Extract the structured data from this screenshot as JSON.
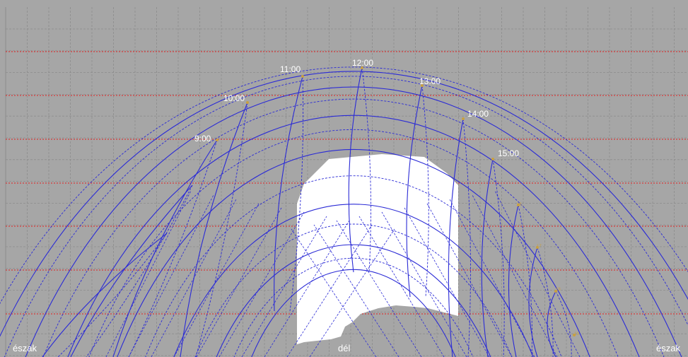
{
  "colors": {
    "background": "#a6a6a6",
    "grid_minor": "#8c8c8c",
    "grid_major": "#e02020",
    "sun_path": "#2b2bd6",
    "obstruction": "#ffffff",
    "label": "#ffffff",
    "small_label": "#c8a040"
  },
  "hour_labels": [
    "9:00",
    "10:00",
    "11:00",
    "12:00",
    "13:00",
    "14:00",
    "15:00"
  ],
  "small_labels": [
    "16",
    "17",
    "18",
    "19"
  ],
  "direction_labels": {
    "left": "észak",
    "center": "dél",
    "right": "észak"
  }
}
